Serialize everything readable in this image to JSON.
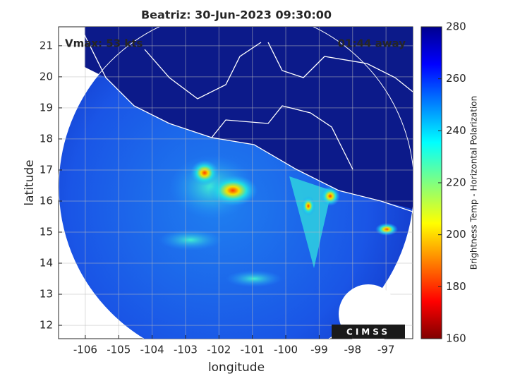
{
  "chart_data": {
    "type": "swath",
    "title": "Beatriz: 30-Jun-2023 09:30:00",
    "xlabel": "longitude",
    "ylabel": "latitude",
    "annotations": [
      "Vmax: 53 kts",
      "01:44 away"
    ],
    "logo": "CIMSS",
    "xlim": [
      -106.8,
      -96.2
    ],
    "xticks": [
      -106,
      -105,
      -104,
      -103,
      -102,
      -101,
      -100,
      -99,
      -98,
      -97
    ],
    "ylim": [
      11.57,
      21.61
    ],
    "yticks": [
      12,
      13,
      14,
      15,
      16,
      17,
      18,
      19,
      20,
      21
    ],
    "grid": true,
    "colorbar": {
      "label": "Brightness Temp - Horizontal Polarization",
      "clim": [
        160,
        280
      ],
      "ticks": [
        160,
        180,
        200,
        220,
        240,
        260,
        280
      ]
    }
  }
}
